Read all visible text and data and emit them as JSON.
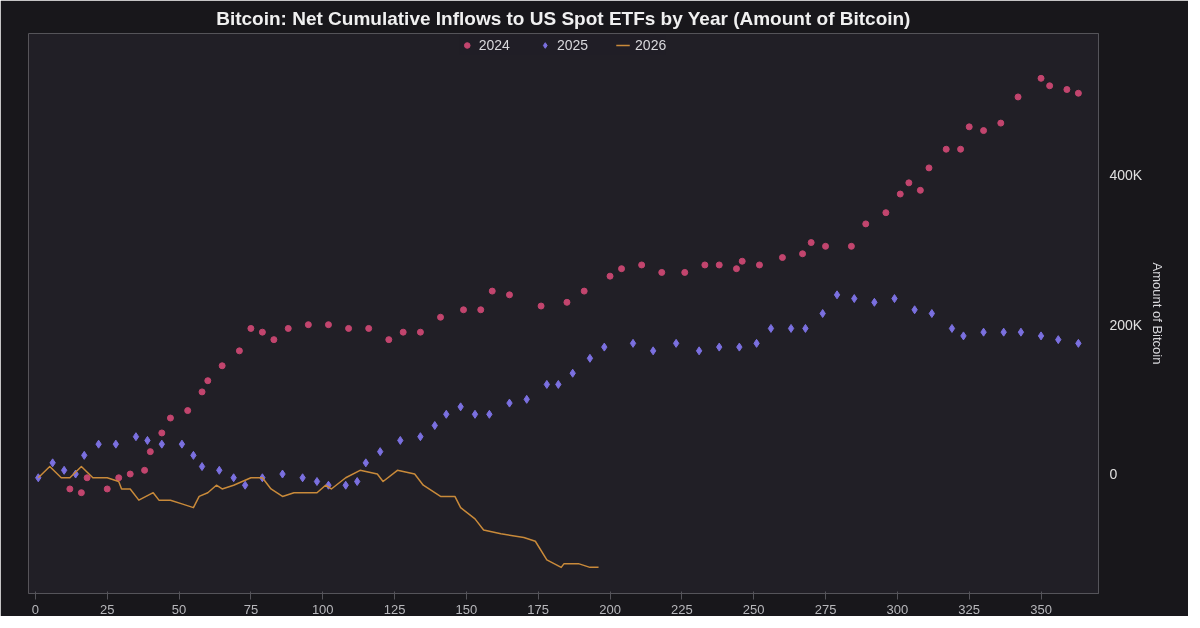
{
  "chart_data": {
    "type": "scatter",
    "title": "Bitcoin: Net Cumulative Inflows to US Spot ETFs by Year (Amount of Bitcoin)",
    "ylabel": "Amount of Bitcoin",
    "xlim": [
      -2.4,
      370
    ],
    "xticks": [
      0,
      25,
      50,
      75,
      100,
      125,
      150,
      175,
      200,
      225,
      250,
      275,
      300,
      325,
      350
    ],
    "ylim": [
      -160000,
      590000
    ],
    "yticks": [
      {
        "value": 0,
        "label": "0"
      },
      {
        "value": 200000,
        "label": "200K"
      },
      {
        "value": 400000,
        "label": "400K"
      }
    ],
    "grid": false,
    "legend": "top",
    "series": [
      {
        "name": "2024",
        "marker": "circle",
        "color": "#c2456e",
        "x": [
          12,
          16,
          18,
          25,
          29,
          33,
          38,
          40,
          44,
          47,
          53,
          58,
          60,
          65,
          71,
          75,
          79,
          83,
          88,
          95,
          102,
          109,
          116,
          123,
          128,
          134,
          141,
          149,
          155,
          159,
          165,
          176,
          185,
          191,
          200,
          204,
          211,
          218,
          226,
          233,
          238,
          244,
          246,
          252,
          260,
          267,
          270,
          275,
          284,
          289,
          296,
          301,
          304,
          308,
          311,
          317,
          322,
          325,
          330,
          336,
          342,
          350,
          353,
          359,
          363
        ],
        "values": [
          -20000,
          -25000,
          -5000,
          -20000,
          -5000,
          0,
          5000,
          30000,
          55000,
          75000,
          85000,
          110000,
          125000,
          145000,
          165000,
          195000,
          190000,
          180000,
          195000,
          200000,
          200000,
          195000,
          195000,
          180000,
          190000,
          190000,
          210000,
          220000,
          220000,
          245000,
          240000,
          225000,
          230000,
          245000,
          265000,
          275000,
          280000,
          270000,
          270000,
          280000,
          280000,
          275000,
          285000,
          280000,
          290000,
          295000,
          310000,
          305000,
          305000,
          335000,
          350000,
          375000,
          390000,
          380000,
          410000,
          435000,
          435000,
          465000,
          460000,
          470000,
          505000,
          530000,
          520000,
          515000,
          510000
        ]
      },
      {
        "name": "2025",
        "marker": "diamond",
        "color": "#7b70e0",
        "x": [
          1,
          6,
          10,
          14,
          17,
          22,
          28,
          35,
          39,
          44,
          51,
          55,
          58,
          64,
          69,
          73,
          79,
          86,
          93,
          98,
          102,
          108,
          112,
          115,
          120,
          127,
          134,
          139,
          143,
          148,
          153,
          158,
          165,
          171,
          178,
          182,
          187,
          193,
          198,
          208,
          215,
          223,
          231,
          238,
          245,
          251,
          256,
          263,
          268,
          274,
          279,
          285,
          292,
          299,
          306,
          312,
          319,
          323,
          330,
          337,
          343,
          350,
          356,
          363
        ],
        "values": [
          -5000,
          15000,
          5000,
          0,
          25000,
          40000,
          40000,
          50000,
          45000,
          40000,
          40000,
          25000,
          10000,
          5000,
          -5000,
          -15000,
          -5000,
          0,
          -5000,
          -10000,
          -15000,
          -15000,
          -10000,
          15000,
          30000,
          45000,
          50000,
          65000,
          80000,
          90000,
          80000,
          80000,
          95000,
          100000,
          120000,
          120000,
          135000,
          155000,
          170000,
          175000,
          165000,
          175000,
          165000,
          170000,
          170000,
          175000,
          195000,
          195000,
          195000,
          215000,
          240000,
          235000,
          230000,
          235000,
          220000,
          215000,
          195000,
          185000,
          190000,
          190000,
          190000,
          185000,
          180000,
          175000
        ]
      },
      {
        "name": "2026",
        "type": "line",
        "color": "#c98a3a",
        "x": [
          1,
          5,
          9,
          12,
          16,
          20,
          25,
          29,
          30,
          33,
          36,
          41,
          43,
          47,
          51,
          55,
          57,
          60,
          63,
          65,
          69,
          75,
          79,
          82,
          86,
          90,
          94,
          98,
          101,
          103,
          108,
          113,
          119,
          121,
          126,
          132,
          135,
          141,
          146,
          148,
          153,
          156,
          162,
          170,
          174,
          178,
          183,
          184,
          189,
          193,
          196
        ],
        "values": [
          -5000,
          10000,
          -5000,
          -5000,
          10000,
          -5000,
          -5000,
          -10000,
          -20000,
          -20000,
          -35000,
          -25000,
          -35000,
          -35000,
          -40000,
          -45000,
          -30000,
          -25000,
          -15000,
          -20000,
          -15000,
          -5000,
          -5000,
          -20000,
          -30000,
          -25000,
          -25000,
          -25000,
          -15000,
          -20000,
          -5000,
          5000,
          0,
          -10000,
          5000,
          0,
          -15000,
          -30000,
          -30000,
          -45000,
          -60000,
          -75000,
          -80000,
          -85000,
          -90000,
          -115000,
          -125000,
          -120000,
          -120000,
          -125000,
          -125000
        ]
      }
    ]
  }
}
